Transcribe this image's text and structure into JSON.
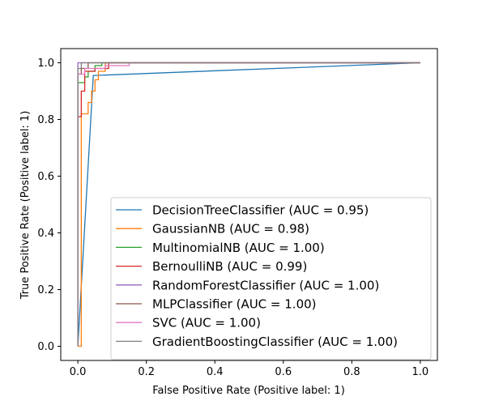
{
  "chart_data": {
    "type": "line",
    "title": "",
    "xlabel": "False Positive Rate (Positive label: 1)",
    "ylabel": "True Positive Rate (Positive label: 1)",
    "xlim": [
      -0.05,
      1.05
    ],
    "ylim": [
      -0.05,
      1.05
    ],
    "xticks": [
      "0.0",
      "0.2",
      "0.4",
      "0.6",
      "0.8",
      "1.0"
    ],
    "yticks": [
      "0.0",
      "0.2",
      "0.4",
      "0.6",
      "0.8",
      "1.0"
    ],
    "grid": false,
    "legend_position": "lower-right",
    "series": [
      {
        "name": "DecisionTreeClassifier (AUC = 0.95)",
        "color": "#1f77b4",
        "x": [
          0,
          0.045,
          1
        ],
        "y": [
          0,
          0.955,
          1
        ]
      },
      {
        "name": "GaussianNB (AUC = 0.98)",
        "color": "#ff7f0e",
        "x": [
          0,
          0.01,
          0.01,
          0.03,
          0.03,
          0.04,
          0.04,
          0.05,
          0.05,
          0.06,
          0.06,
          0.08,
          0.08,
          1
        ],
        "y": [
          0,
          0,
          0.82,
          0.82,
          0.86,
          0.86,
          0.9,
          0.9,
          0.94,
          0.94,
          0.97,
          0.97,
          1,
          1
        ]
      },
      {
        "name": "MultinomialNB (AUC = 1.00)",
        "color": "#2ca02c",
        "x": [
          0,
          0,
          0.02,
          0.02,
          0.03,
          0.03,
          0.05,
          0.05,
          0.07,
          0.07,
          1
        ],
        "y": [
          0,
          0.93,
          0.93,
          0.95,
          0.95,
          0.97,
          0.97,
          0.99,
          0.99,
          1,
          1
        ]
      },
      {
        "name": "BernoulliNB (AUC = 0.99)",
        "color": "#d62728",
        "x": [
          0,
          0,
          0.01,
          0.01,
          0.02,
          0.02,
          0.05,
          0.05,
          0.09,
          0.09,
          1
        ],
        "y": [
          0,
          0.81,
          0.81,
          0.9,
          0.9,
          0.97,
          0.97,
          0.98,
          0.98,
          1,
          1
        ]
      },
      {
        "name": "RandomForestClassifier (AUC = 1.00)",
        "color": "#9467bd",
        "x": [
          0,
          0,
          1
        ],
        "y": [
          0,
          1,
          1
        ]
      },
      {
        "name": "MLPClassifier (AUC = 1.00)",
        "color": "#8c564b",
        "x": [
          0,
          0,
          0.01,
          0.01,
          0.03,
          0.03,
          1
        ],
        "y": [
          0,
          0.96,
          0.96,
          0.98,
          0.98,
          1,
          1
        ]
      },
      {
        "name": "SVC (AUC = 1.00)",
        "color": "#e377c2",
        "x": [
          0,
          0,
          0.02,
          0.02,
          0.08,
          0.08,
          0.15,
          0.15,
          1
        ],
        "y": [
          0,
          0.96,
          0.96,
          0.98,
          0.98,
          0.99,
          0.99,
          1,
          1
        ]
      },
      {
        "name": "GradientBoostingClassifier (AUC = 1.00)",
        "color": "#7f7f7f",
        "x": [
          0,
          0,
          0.01,
          0.01,
          1
        ],
        "y": [
          0,
          0.98,
          0.98,
          1,
          1
        ]
      }
    ]
  }
}
